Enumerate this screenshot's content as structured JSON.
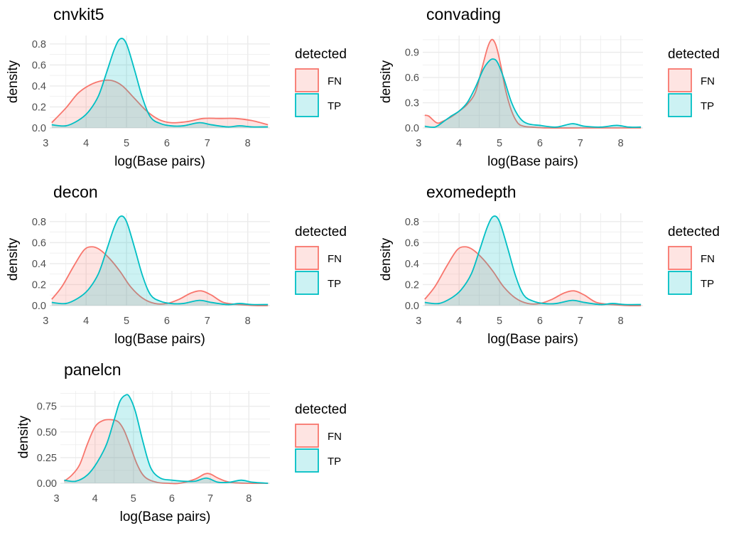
{
  "colors": {
    "FN": "#F8766D",
    "TP": "#00BFC4"
  },
  "chart_data": [
    {
      "type": "area",
      "title": "cnvkit5",
      "xlabel": "log(Base pairs)",
      "ylabel": "density",
      "xlim": [
        3.1,
        8.55
      ],
      "ylim": [
        0,
        0.88
      ],
      "xticks": [
        3,
        4,
        5,
        6,
        7,
        8
      ],
      "yticks": [
        0.0,
        0.2,
        0.4,
        0.6,
        0.8
      ],
      "ytick_labels": [
        "0.0",
        "0.2",
        "0.4",
        "0.6",
        "0.8"
      ],
      "legend": {
        "title": "detected",
        "position": "right",
        "entries": [
          "FN",
          "TP"
        ]
      },
      "series": [
        {
          "name": "FN",
          "x": [
            3.15,
            3.5,
            3.8,
            4.1,
            4.4,
            4.65,
            4.9,
            5.2,
            5.5,
            5.8,
            6.1,
            6.5,
            6.9,
            7.3,
            7.7,
            8.1,
            8.5
          ],
          "y": [
            0.05,
            0.19,
            0.33,
            0.41,
            0.45,
            0.45,
            0.4,
            0.28,
            0.16,
            0.08,
            0.05,
            0.06,
            0.09,
            0.09,
            0.09,
            0.07,
            0.03
          ]
        },
        {
          "name": "TP",
          "x": [
            3.15,
            3.5,
            3.8,
            4.05,
            4.3,
            4.5,
            4.7,
            4.85,
            5.0,
            5.2,
            5.4,
            5.6,
            5.85,
            6.1,
            6.4,
            6.8,
            7.1,
            7.5,
            7.8,
            8.1,
            8.5
          ],
          "y": [
            0.03,
            0.02,
            0.07,
            0.15,
            0.3,
            0.52,
            0.75,
            0.85,
            0.8,
            0.55,
            0.28,
            0.1,
            0.04,
            0.02,
            0.02,
            0.05,
            0.03,
            0.01,
            0.02,
            0.01,
            0.01
          ]
        }
      ]
    },
    {
      "type": "area",
      "title": "convading",
      "xlabel": "log(Base pairs)",
      "ylabel": "density",
      "xlim": [
        3.1,
        8.55
      ],
      "ylim": [
        0,
        1.1
      ],
      "xticks": [
        3,
        4,
        5,
        6,
        7,
        8
      ],
      "yticks": [
        0.0,
        0.3,
        0.6,
        0.9
      ],
      "ytick_labels": [
        "0.0",
        "0.3",
        "0.6",
        "0.9"
      ],
      "legend": {
        "title": "detected",
        "position": "right",
        "entries": [
          "FN",
          "TP"
        ]
      },
      "series": [
        {
          "name": "FN",
          "x": [
            3.15,
            3.25,
            3.45,
            3.6,
            3.8,
            4.0,
            4.2,
            4.4,
            4.55,
            4.7,
            4.8,
            4.88,
            4.95,
            5.05,
            5.15,
            5.3,
            5.45,
            5.6,
            5.8,
            6.2,
            7.0,
            8.5
          ],
          "y": [
            0.15,
            0.14,
            0.06,
            0.08,
            0.13,
            0.2,
            0.28,
            0.42,
            0.68,
            0.95,
            1.05,
            1.02,
            0.92,
            0.7,
            0.45,
            0.2,
            0.06,
            0.02,
            0.01,
            0.0,
            0.0,
            0.0
          ]
        },
        {
          "name": "TP",
          "x": [
            3.15,
            3.4,
            3.6,
            3.8,
            4.0,
            4.2,
            4.4,
            4.6,
            4.75,
            4.85,
            4.95,
            5.1,
            5.3,
            5.5,
            5.7,
            6.0,
            6.4,
            6.8,
            7.1,
            7.5,
            7.9,
            8.2,
            8.5
          ],
          "y": [
            0.02,
            0.01,
            0.07,
            0.14,
            0.2,
            0.3,
            0.48,
            0.7,
            0.8,
            0.82,
            0.78,
            0.6,
            0.3,
            0.12,
            0.05,
            0.03,
            0.01,
            0.05,
            0.02,
            0.01,
            0.03,
            0.01,
            0.01
          ]
        }
      ]
    },
    {
      "type": "area",
      "title": "decon",
      "xlabel": "log(Base pairs)",
      "ylabel": "density",
      "xlim": [
        3.1,
        8.55
      ],
      "ylim": [
        0,
        0.88
      ],
      "xticks": [
        3,
        4,
        5,
        6,
        7,
        8
      ],
      "yticks": [
        0.0,
        0.2,
        0.4,
        0.6,
        0.8
      ],
      "ytick_labels": [
        "0.0",
        "0.2",
        "0.4",
        "0.6",
        "0.8"
      ],
      "legend": {
        "title": "detected",
        "position": "right",
        "entries": [
          "FN",
          "TP"
        ]
      },
      "series": [
        {
          "name": "FN",
          "x": [
            3.15,
            3.4,
            3.7,
            3.95,
            4.15,
            4.35,
            4.6,
            4.85,
            5.1,
            5.4,
            5.7,
            6.0,
            6.3,
            6.6,
            6.85,
            7.1,
            7.4,
            7.8,
            8.2,
            8.5
          ],
          "y": [
            0.06,
            0.18,
            0.38,
            0.53,
            0.56,
            0.53,
            0.44,
            0.32,
            0.18,
            0.07,
            0.02,
            0.02,
            0.06,
            0.12,
            0.14,
            0.1,
            0.03,
            0.01,
            0.0,
            0.0
          ]
        },
        {
          "name": "TP",
          "x": [
            3.15,
            3.5,
            3.8,
            4.05,
            4.3,
            4.5,
            4.7,
            4.85,
            5.0,
            5.2,
            5.4,
            5.6,
            5.85,
            6.1,
            6.4,
            6.8,
            7.1,
            7.5,
            7.8,
            8.1,
            8.5
          ],
          "y": [
            0.03,
            0.02,
            0.07,
            0.15,
            0.3,
            0.52,
            0.75,
            0.85,
            0.8,
            0.55,
            0.28,
            0.1,
            0.04,
            0.02,
            0.02,
            0.05,
            0.03,
            0.01,
            0.02,
            0.01,
            0.01
          ]
        }
      ]
    },
    {
      "type": "area",
      "title": "exomedepth",
      "xlabel": "log(Base pairs)",
      "ylabel": "density",
      "xlim": [
        3.1,
        8.55
      ],
      "ylim": [
        0,
        0.88
      ],
      "xticks": [
        3,
        4,
        5,
        6,
        7,
        8
      ],
      "yticks": [
        0.0,
        0.2,
        0.4,
        0.6,
        0.8
      ],
      "ytick_labels": [
        "0.0",
        "0.2",
        "0.4",
        "0.6",
        "0.8"
      ],
      "legend": {
        "title": "detected",
        "position": "right",
        "entries": [
          "FN",
          "TP"
        ]
      },
      "series": [
        {
          "name": "FN",
          "x": [
            3.15,
            3.4,
            3.7,
            3.95,
            4.15,
            4.35,
            4.6,
            4.85,
            5.1,
            5.4,
            5.7,
            6.0,
            6.3,
            6.6,
            6.85,
            7.1,
            7.4,
            7.8,
            8.2,
            8.5
          ],
          "y": [
            0.06,
            0.18,
            0.38,
            0.53,
            0.56,
            0.53,
            0.44,
            0.32,
            0.18,
            0.07,
            0.02,
            0.02,
            0.06,
            0.12,
            0.14,
            0.1,
            0.03,
            0.01,
            0.0,
            0.0
          ]
        },
        {
          "name": "TP",
          "x": [
            3.15,
            3.5,
            3.8,
            4.05,
            4.3,
            4.5,
            4.7,
            4.85,
            5.0,
            5.2,
            5.4,
            5.6,
            5.85,
            6.1,
            6.4,
            6.8,
            7.1,
            7.5,
            7.8,
            8.1,
            8.5
          ],
          "y": [
            0.03,
            0.02,
            0.07,
            0.15,
            0.3,
            0.52,
            0.75,
            0.85,
            0.8,
            0.55,
            0.28,
            0.1,
            0.04,
            0.02,
            0.02,
            0.05,
            0.03,
            0.01,
            0.02,
            0.01,
            0.01
          ]
        }
      ]
    },
    {
      "type": "area",
      "title": "panelcn",
      "xlabel": "log(Base pairs)",
      "ylabel": "density",
      "xlim": [
        3.1,
        8.55
      ],
      "ylim": [
        0,
        0.9
      ],
      "xticks": [
        3,
        4,
        5,
        6,
        7,
        8
      ],
      "yticks": [
        0.0,
        0.25,
        0.5,
        0.75
      ],
      "ytick_labels": [
        "0.00",
        "0.25",
        "0.50",
        "0.75"
      ],
      "legend": {
        "title": "detected",
        "position": "right",
        "entries": [
          "FN",
          "TP"
        ]
      },
      "series": [
        {
          "name": "FN",
          "x": [
            3.2,
            3.4,
            3.6,
            3.8,
            4.0,
            4.2,
            4.4,
            4.6,
            4.75,
            4.9,
            5.1,
            5.3,
            5.6,
            5.9,
            6.2,
            6.6,
            6.85,
            7.0,
            7.2,
            7.5,
            8.0,
            8.5
          ],
          "y": [
            0.02,
            0.08,
            0.18,
            0.38,
            0.55,
            0.61,
            0.62,
            0.6,
            0.52,
            0.38,
            0.18,
            0.06,
            0.01,
            0.0,
            0.0,
            0.04,
            0.09,
            0.09,
            0.05,
            0.01,
            0.0,
            0.0
          ]
        },
        {
          "name": "TP",
          "x": [
            3.2,
            3.5,
            3.8,
            4.05,
            4.3,
            4.5,
            4.65,
            4.8,
            4.9,
            5.05,
            5.25,
            5.45,
            5.7,
            6.0,
            6.3,
            6.6,
            6.9,
            7.2,
            7.5,
            7.8,
            8.1,
            8.5
          ],
          "y": [
            0.03,
            0.02,
            0.08,
            0.2,
            0.38,
            0.62,
            0.8,
            0.86,
            0.84,
            0.7,
            0.4,
            0.15,
            0.05,
            0.03,
            0.02,
            0.02,
            0.05,
            0.01,
            0.01,
            0.03,
            0.01,
            0.0
          ]
        }
      ]
    }
  ]
}
